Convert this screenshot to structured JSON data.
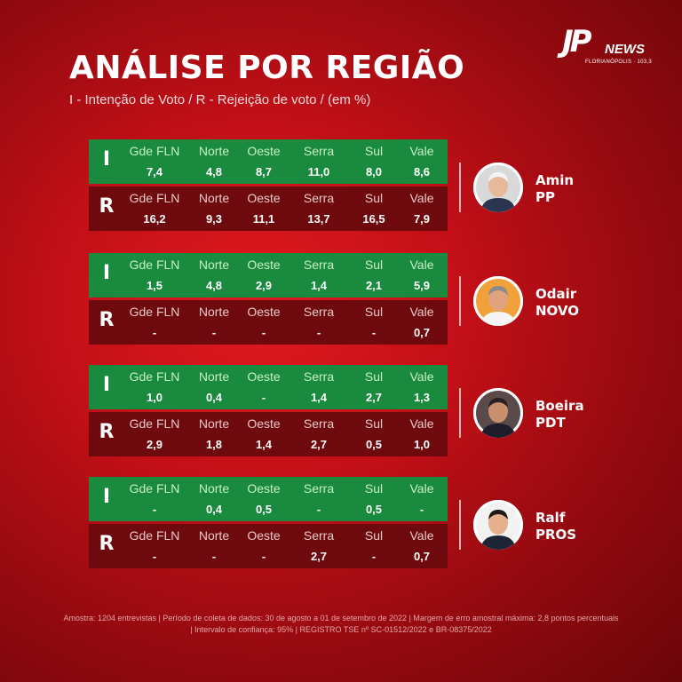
{
  "brand": {
    "logo_text": "JP",
    "logo_news": "NEWS",
    "logo_city": "FLORIANÓPOLIS · 103,3"
  },
  "title": "ANÁLISE POR REGIÃO",
  "subtitle": "I - Intenção de Voto / R - Rejeição de voto / (em %)",
  "regions": [
    "Gde FLN",
    "Norte",
    "Oeste",
    "Serra",
    "Sul",
    "Vale"
  ],
  "colors": {
    "intention": "#1a8a3e",
    "rejection": "#6e0a0d"
  },
  "candidates": [
    {
      "name": "Amin",
      "party": "PP",
      "intention": {
        "letter": "I",
        "values": [
          "7,4",
          "4,8",
          "8,7",
          "11,0",
          "8,0",
          "8,6"
        ]
      },
      "rejection": {
        "letter": "R",
        "values": [
          "16,2",
          "9,3",
          "11,1",
          "13,7",
          "16,5",
          "7,9"
        ]
      }
    },
    {
      "name": "Odair",
      "party": "NOVO",
      "intention": {
        "letter": "I",
        "values": [
          "1,5",
          "4,8",
          "2,9",
          "1,4",
          "2,1",
          "5,9"
        ]
      },
      "rejection": {
        "letter": "R",
        "values": [
          "-",
          "-",
          "-",
          "-",
          "-",
          "0,7"
        ]
      }
    },
    {
      "name": "Boeira",
      "party": "PDT",
      "intention": {
        "letter": "I",
        "values": [
          "1,0",
          "0,4",
          "-",
          "1,4",
          "2,7",
          "1,3"
        ]
      },
      "rejection": {
        "letter": "R",
        "values": [
          "2,9",
          "1,8",
          "1,4",
          "2,7",
          "0,5",
          "1,0"
        ]
      }
    },
    {
      "name": "Ralf",
      "party": "PROS",
      "intention": {
        "letter": "I",
        "values": [
          "-",
          "0,4",
          "0,5",
          "-",
          "0,5",
          "-"
        ]
      },
      "rejection": {
        "letter": "R",
        "values": [
          "-",
          "-",
          "-",
          "2,7",
          "-",
          "0,7"
        ]
      }
    }
  ],
  "footer": {
    "line1": "Amostra: 1204 entrevistas | Período de coleta de dados: 30 de agosto a 01 de setembro de 2022 | Margem de erro amostral máxima: 2,8 pontos percentuais",
    "line2": "| Intervalo de confiança: 95% | REGISTRO TSE nº SC-01512/2022 e BR-08375/2022"
  }
}
